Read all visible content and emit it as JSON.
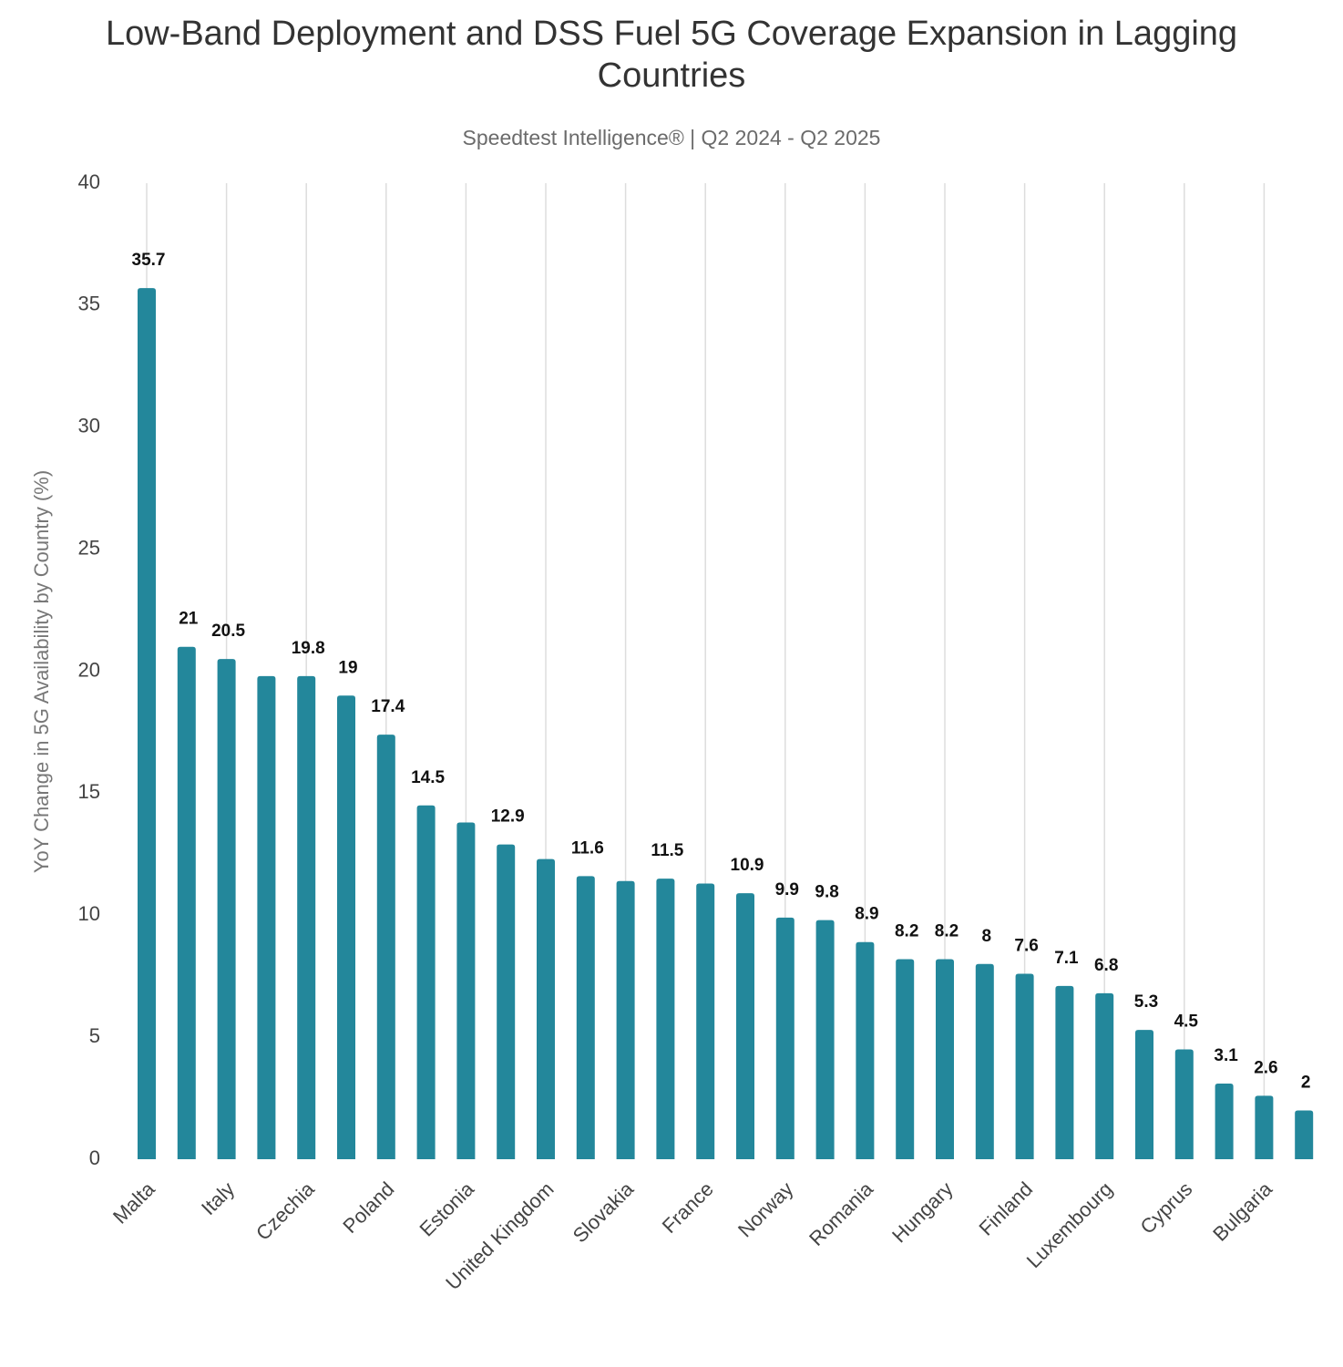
{
  "chart_data": {
    "type": "bar",
    "title": "Low-Band Deployment and DSS Fuel 5G Coverage Expansion in Lagging Countries",
    "subtitle": "Speedtest Intelligence® | Q2 2024 - Q2 2025",
    "y_label": "YoY Change in 5G Availability by Country (%)",
    "categories": [
      "Malta",
      null,
      "Italy",
      null,
      "Czechia",
      null,
      "Poland",
      null,
      "Estonia",
      null,
      "United Kingdom",
      null,
      "Slovakia",
      null,
      "France",
      null,
      "Norway",
      null,
      "Romania",
      null,
      "Hungary",
      null,
      "Finland",
      null,
      "Luxembourg",
      null,
      "Cyprus",
      null,
      "Bulgaria",
      null
    ],
    "values": [
      35.7,
      21,
      20.5,
      19.8,
      19.8,
      19,
      17.4,
      14.5,
      13.8,
      12.9,
      12.3,
      11.6,
      11.4,
      11.5,
      11.3,
      10.9,
      9.9,
      9.8,
      8.9,
      8.2,
      8.2,
      8,
      7.6,
      7.1,
      6.8,
      5.3,
      4.5,
      3.1,
      2.6,
      2
    ],
    "value_labels": [
      "35.7",
      "21",
      "20.5",
      null,
      "19.8",
      "19",
      "17.4",
      "14.5",
      null,
      "12.9",
      null,
      "11.6",
      null,
      "11.5",
      null,
      "10.9",
      "9.9",
      "9.8",
      "8.9",
      "8.2",
      "8.2",
      "8",
      "7.6",
      "7.1",
      "6.8",
      "5.3",
      "4.5",
      "3.1",
      "2.6",
      "2"
    ],
    "color": "#23879b",
    "ylim": [
      0,
      40
    ],
    "yticks": [
      0,
      5,
      10,
      15,
      20,
      25,
      30,
      35,
      40
    ],
    "grid": true
  }
}
